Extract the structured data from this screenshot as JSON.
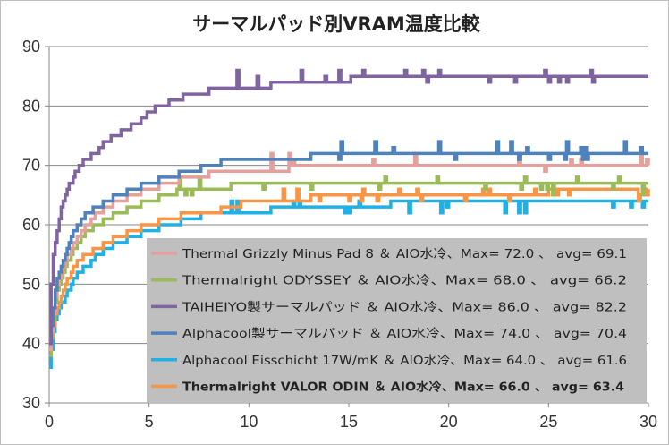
{
  "chart_data": {
    "type": "line",
    "title": "サーマルパッド別VRAM温度比較",
    "xlabel": "",
    "ylabel": "",
    "xlim": [
      0,
      30
    ],
    "ylim": [
      30,
      90
    ],
    "x_ticks": [
      "0",
      "5",
      "10",
      "15",
      "20",
      "25",
      "30"
    ],
    "y_ticks": [
      "30",
      "40",
      "50",
      "60",
      "70",
      "80",
      "90"
    ],
    "grid": "horizontal",
    "legend_position": "bottom-right",
    "series": [
      {
        "name": "Thermal Grizzly Minus Pad 8 ＆ AIO水冷、Max= 72.0 、 avg= 69.1",
        "color": "#E6A09C",
        "bold": false,
        "x": [
          0,
          0.15,
          0.3,
          0.5,
          0.8,
          1.1,
          1.5,
          1.9,
          2.4,
          2.9,
          3.5,
          4.2,
          5.0,
          6.0,
          7.0,
          8.0,
          9.0,
          10,
          12,
          14,
          16,
          18,
          20,
          22,
          24,
          26,
          28,
          30
        ],
        "y": [
          39,
          44,
          48,
          51,
          54,
          56,
          58,
          60,
          62,
          63,
          64,
          65,
          66,
          67,
          68,
          68.5,
          69,
          69,
          69.5,
          70,
          70,
          70,
          70,
          70,
          70,
          70,
          70,
          70
        ],
        "noise_from": 11,
        "noise_low": 69,
        "noise_high": 72
      },
      {
        "name": "Thermalright ODYSSEY ＆ AIO水冷、Max= 68.0 、 avg= 66.2",
        "color": "#9BBB59",
        "bold": false,
        "x": [
          0,
          0.15,
          0.3,
          0.5,
          0.8,
          1.1,
          1.5,
          1.9,
          2.4,
          2.9,
          3.5,
          4.2,
          5.0,
          6.0,
          7.0,
          8.0,
          9.0,
          10,
          12,
          14,
          16,
          18,
          20,
          22,
          24,
          26,
          28,
          30
        ],
        "y": [
          38,
          43,
          47,
          50,
          53,
          55,
          57,
          59,
          60,
          61,
          62,
          63,
          64,
          65,
          66,
          66,
          66.5,
          67,
          67,
          67,
          67,
          67,
          67,
          67,
          67,
          67,
          67,
          67
        ],
        "noise_from": 6,
        "noise_low": 65,
        "noise_high": 68
      },
      {
        "name": "TAIHEIYO製サーマルパッド ＆ AIO水冷、Max= 86.0 、 avg= 82.2",
        "color": "#8064A2",
        "bold": false,
        "x": [
          0,
          0.1,
          0.2,
          0.35,
          0.5,
          0.7,
          0.9,
          1.2,
          1.5,
          1.9,
          2.3,
          2.8,
          3.3,
          3.8,
          4.4,
          5.0,
          5.6,
          6.3,
          7.0,
          8.0,
          9.0,
          10,
          12,
          14,
          16,
          18,
          20,
          22,
          24,
          26,
          28,
          30
        ],
        "y": [
          40,
          50,
          55,
          58,
          61,
          64,
          66,
          68,
          70,
          71,
          72,
          74,
          75,
          76,
          77,
          79,
          80,
          81,
          82,
          82.5,
          83,
          83,
          84,
          84,
          85,
          85,
          85,
          85,
          85,
          85,
          85,
          85
        ],
        "noise_from": 9,
        "noise_low": 84,
        "noise_high": 86
      },
      {
        "name": "Alphacool製サーマルパッド ＆ AIO水冷、Max= 74.0 、 avg= 70.4",
        "color": "#4F81BD",
        "bold": false,
        "x": [
          0,
          0.15,
          0.3,
          0.5,
          0.8,
          1.1,
          1.5,
          1.9,
          2.4,
          2.9,
          3.5,
          4.2,
          5.0,
          6.0,
          7.0,
          8.0,
          9.0,
          10,
          12,
          14,
          16,
          18,
          20,
          22,
          24,
          26,
          28,
          30
        ],
        "y": [
          40,
          45,
          49,
          52,
          55,
          58,
          60,
          62,
          63,
          64,
          65,
          66,
          67,
          68,
          69,
          70,
          71,
          71,
          71,
          72,
          72,
          72,
          72,
          72,
          72,
          72,
          72,
          72
        ],
        "noise_from": 12,
        "noise_low": 71,
        "noise_high": 74
      },
      {
        "name": "Alphacool Eisschicht 17W/mK ＆ AIO水冷、Max= 64.0 、 avg= 61.6",
        "color": "#1FB1E6",
        "bold": false,
        "x": [
          0,
          0.15,
          0.3,
          0.5,
          0.8,
          1.1,
          1.5,
          1.9,
          2.4,
          2.9,
          3.5,
          4.2,
          5.0,
          6.0,
          7.0,
          8.0,
          9.0,
          10,
          12,
          14,
          16,
          18,
          20,
          22,
          24,
          26,
          28,
          30
        ],
        "y": [
          36,
          41,
          44,
          46,
          48,
          50,
          52,
          53,
          55,
          56,
          57,
          58,
          59,
          60,
          61,
          62,
          62,
          62,
          63,
          63,
          63,
          64,
          64,
          64,
          64,
          64,
          64,
          64
        ],
        "noise_from": 9,
        "noise_low": 62,
        "noise_high": 64
      },
      {
        "name": "Thermalright VALOR ODIN ＆ AIO水冷、Max= 66.0 、 avg= 63.4",
        "color": "#F79646",
        "bold": true,
        "x": [
          0,
          0.15,
          0.3,
          0.5,
          0.8,
          1.1,
          1.5,
          1.9,
          2.4,
          2.9,
          3.5,
          4.2,
          5.0,
          6.0,
          7.0,
          8.0,
          9.0,
          10,
          12,
          14,
          16,
          18,
          20,
          22,
          24,
          26,
          28,
          30
        ],
        "y": [
          38,
          42,
          45,
          47,
          50,
          52,
          54,
          55,
          56,
          57,
          58,
          59,
          60,
          61,
          62,
          62,
          63,
          64,
          64,
          65,
          65,
          65,
          65,
          65,
          65,
          66,
          66,
          66
        ],
        "noise_from": 11,
        "noise_low": 64,
        "noise_high": 66
      }
    ]
  }
}
